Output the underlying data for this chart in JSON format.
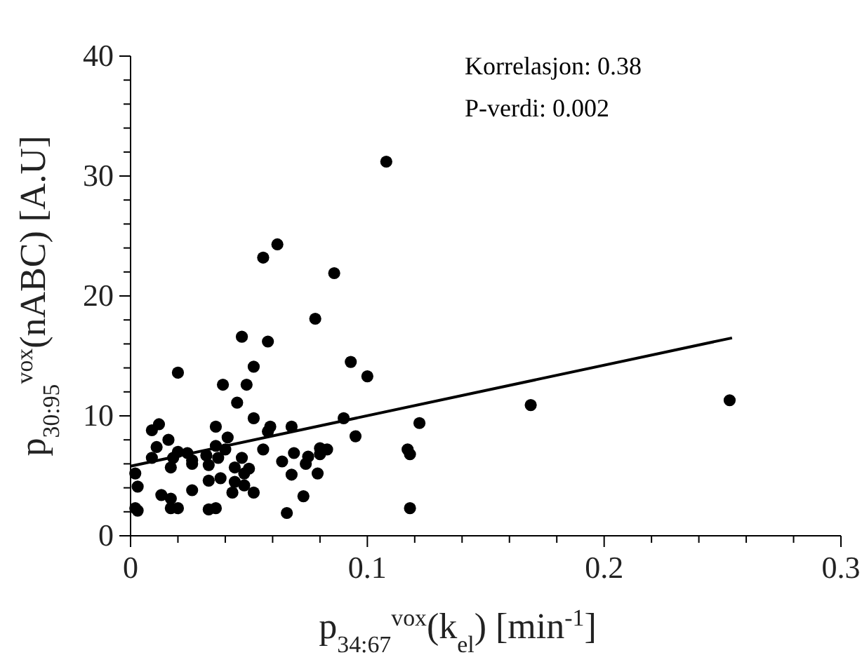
{
  "chart_data": {
    "type": "scatter",
    "xlabel": "p$_{34:67}$$^{vox}$(k$_{el}$) [min$^{-1}$]",
    "ylabel": "p$_{30:95}$$^{vox}$(nABC) [A.U]",
    "annotations": [
      "Korrelasjon: 0.38",
      "P-verdi: 0.002"
    ],
    "xlim": [
      0,
      0.3
    ],
    "xticks": [
      0,
      {
        "value": 0.02,
        "label": null
      },
      {
        "value": 0.04,
        "label": null
      },
      {
        "value": 0.06,
        "label": null
      },
      {
        "value": 0.08,
        "label": null
      },
      0.1,
      {
        "value": 0.12,
        "label": null
      },
      {
        "value": 0.14,
        "label": null
      },
      {
        "value": 0.16,
        "label": null
      },
      {
        "value": 0.18,
        "label": null
      },
      0.2,
      {
        "value": 0.22,
        "label": null
      },
      {
        "value": 0.24,
        "label": null
      },
      {
        "value": 0.26,
        "label": null
      },
      {
        "value": 0.28,
        "label": null
      },
      0.3
    ],
    "ylim": [
      0,
      40
    ],
    "yticks": [
      0,
      {
        "value": 2,
        "label": null
      },
      {
        "value": 4,
        "label": null
      },
      {
        "value": 6,
        "label": null
      },
      {
        "value": 8,
        "label": null
      },
      10,
      {
        "value": 12,
        "label": null
      },
      {
        "value": 14,
        "label": null
      },
      {
        "value": 16,
        "label": null
      },
      {
        "value": 18,
        "label": null
      },
      20,
      {
        "value": 22,
        "label": null
      },
      {
        "value": 24,
        "label": null
      },
      {
        "value": 26,
        "label": null
      },
      {
        "value": 28,
        "label": null
      },
      30,
      {
        "value": 32,
        "label": null
      },
      {
        "value": 34,
        "label": null
      },
      {
        "value": 36,
        "label": null
      },
      {
        "value": 38,
        "label": null
      },
      40
    ],
    "grid": false,
    "series": [
      {
        "color": "#000000",
        "marker": "circle",
        "x": [
          0.108,
          0.062,
          0.056,
          0.086,
          0.078,
          0.047,
          0.058,
          0.093,
          0.052,
          0.1,
          0.02,
          0.039,
          0.049,
          0.045,
          0.169,
          0.253,
          0.052,
          0.09,
          0.122,
          0.059,
          0.068,
          0.036,
          0.012,
          0.009,
          0.058,
          0.095,
          0.016,
          0.041,
          0.011,
          0.036,
          0.04,
          0.056,
          0.08,
          0.083,
          0.117,
          0.118,
          0.02,
          0.024,
          0.009,
          0.018,
          0.032,
          0.037,
          0.047,
          0.069,
          0.075,
          0.08,
          0.026,
          0.026,
          0.064,
          0.074,
          0.017,
          0.033,
          0.044,
          0.05,
          0.002,
          0.048,
          0.068,
          0.079,
          0.003,
          0.033,
          0.038,
          0.044,
          0.048,
          0.026,
          0.013,
          0.043,
          0.052,
          0.073,
          0.017,
          0.002,
          0.003,
          0.017,
          0.02,
          0.033,
          0.036,
          0.066,
          0.118
        ],
        "values": [
          31.2,
          24.3,
          23.2,
          21.9,
          18.1,
          16.6,
          16.2,
          14.5,
          14.1,
          13.3,
          13.6,
          12.6,
          12.6,
          11.1,
          10.9,
          11.3,
          9.8,
          9.8,
          9.4,
          9.1,
          9.1,
          9.1,
          9.3,
          8.8,
          8.7,
          8.3,
          8.0,
          8.2,
          7.4,
          7.5,
          7.2,
          7.2,
          7.3,
          7.2,
          7.2,
          6.8,
          7.0,
          6.9,
          6.5,
          6.5,
          6.7,
          6.5,
          6.5,
          6.9,
          6.6,
          6.8,
          6.3,
          6.0,
          6.2,
          6.0,
          5.7,
          5.9,
          5.7,
          5.6,
          5.2,
          5.2,
          5.1,
          5.2,
          4.1,
          4.6,
          4.8,
          4.5,
          4.2,
          3.8,
          3.4,
          3.6,
          3.6,
          3.3,
          3.1,
          2.3,
          2.1,
          2.3,
          2.3,
          2.2,
          2.3,
          1.9,
          2.3
        ]
      },
      {
        "type": "line",
        "color": "#000000",
        "marker": "none",
        "line_style": "solid",
        "x": [
          0,
          0.254
        ],
        "values": [
          5.8,
          16.5
        ]
      }
    ]
  }
}
